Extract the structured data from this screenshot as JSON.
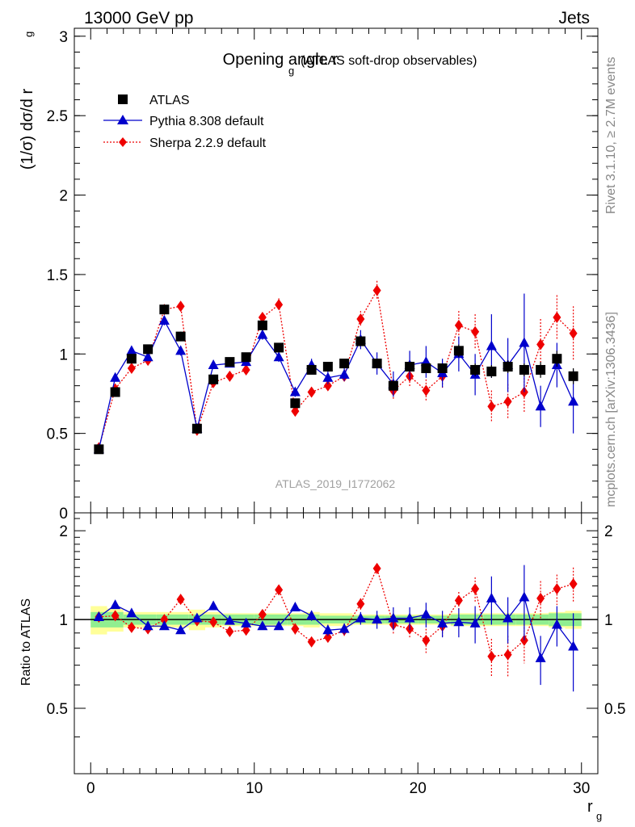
{
  "header": {
    "left": "13000 GeV pp",
    "right": "Jets"
  },
  "side_labels": {
    "rivet": "Rivet 3.1.10, ≥ 2.7M events",
    "mcplots": "mcplots.cern.ch [arXiv:1306.3436]"
  },
  "chart_data": {
    "type": "scatter",
    "title": "Opening angle r",
    "title_sub": "g",
    "title_suffix": "(ATLAS soft-drop observables)",
    "analysis_id": "ATLAS_2019_I1772062",
    "ylabel": "(1/σ) dσ/d r",
    "ylabel_sub": "g",
    "xlabel": "r",
    "xlabel_sub": "g",
    "ratio_ylabel": "Ratio to ATLAS",
    "xlim": [
      -1,
      31
    ],
    "ylim": [
      0,
      3.05
    ],
    "ratio_ylim": [
      0.3,
      2.3
    ],
    "yticks": [
      "0",
      "0.5",
      "1",
      "1.5",
      "2",
      "2.5",
      "3"
    ],
    "xticks": [
      "0",
      "10",
      "20",
      "30"
    ],
    "ratio_yticks": [
      "0.5",
      "1",
      "2"
    ],
    "legend_position": "top-left",
    "colors": {
      "atlas": "#000000",
      "pythia": "#0000cc",
      "sherpa": "#ee0000",
      "band_inner": "#90ee90",
      "band_outer": "#ffff99"
    },
    "x": [
      0.5,
      1.5,
      2.5,
      3.5,
      4.5,
      5.5,
      6.5,
      7.5,
      8.5,
      9.5,
      10.5,
      11.5,
      12.5,
      13.5,
      14.5,
      15.5,
      16.5,
      17.5,
      18.5,
      19.5,
      20.5,
      21.5,
      22.5,
      23.5,
      24.5,
      25.5,
      26.5,
      27.5,
      28.5,
      29.5
    ],
    "series": [
      {
        "name": "ATLAS",
        "marker": "square",
        "values": [
          0.4,
          0.76,
          0.97,
          1.03,
          1.28,
          1.11,
          0.53,
          0.84,
          0.95,
          0.98,
          1.18,
          1.04,
          0.69,
          0.9,
          0.92,
          0.94,
          1.08,
          0.94,
          0.8,
          0.92,
          0.91,
          0.91,
          1.02,
          0.9,
          0.89,
          0.92,
          0.9,
          0.9,
          0.97,
          0.86
        ],
        "err": [
          0.02,
          0.02,
          0.02,
          0.02,
          0.03,
          0.03,
          0.02,
          0.02,
          0.02,
          0.02,
          0.03,
          0.03,
          0.02,
          0.02,
          0.02,
          0.02,
          0.03,
          0.03,
          0.03,
          0.03,
          0.03,
          0.03,
          0.04,
          0.04,
          0.04,
          0.04,
          0.04,
          0.05,
          0.05,
          0.05
        ]
      },
      {
        "name": "Pythia 8.308 default",
        "marker": "triangle",
        "values": [
          0.4,
          0.85,
          1.02,
          0.98,
          1.21,
          1.02,
          0.53,
          0.93,
          0.94,
          0.95,
          1.12,
          0.98,
          0.76,
          0.93,
          0.85,
          0.87,
          1.09,
          0.94,
          0.81,
          0.93,
          0.95,
          0.88,
          1.0,
          0.87,
          1.05,
          0.93,
          1.07,
          0.67,
          0.93,
          0.7
        ],
        "err": [
          0.01,
          0.02,
          0.02,
          0.02,
          0.03,
          0.03,
          0.02,
          0.02,
          0.02,
          0.02,
          0.03,
          0.03,
          0.03,
          0.04,
          0.04,
          0.04,
          0.06,
          0.07,
          0.08,
          0.09,
          0.1,
          0.09,
          0.11,
          0.13,
          0.2,
          0.17,
          0.31,
          0.13,
          0.14,
          0.2
        ]
      },
      {
        "name": "Sherpa 2.2.9 default",
        "marker": "diamond",
        "values": [
          0.41,
          0.78,
          0.91,
          0.96,
          1.28,
          1.3,
          0.52,
          0.82,
          0.86,
          0.9,
          1.23,
          1.31,
          0.64,
          0.76,
          0.8,
          0.86,
          1.22,
          1.4,
          0.77,
          0.86,
          0.77,
          0.86,
          1.18,
          1.14,
          0.67,
          0.7,
          0.76,
          1.06,
          1.23,
          1.13
        ],
        "err": [
          0.01,
          0.02,
          0.02,
          0.02,
          0.03,
          0.03,
          0.02,
          0.02,
          0.02,
          0.02,
          0.03,
          0.04,
          0.03,
          0.03,
          0.03,
          0.04,
          0.05,
          0.06,
          0.06,
          0.07,
          0.07,
          0.08,
          0.09,
          0.11,
          0.1,
          0.11,
          0.13,
          0.16,
          0.14,
          0.17
        ]
      }
    ],
    "ratio": {
      "pythia": [
        1.02,
        1.12,
        1.05,
        0.95,
        0.95,
        0.92,
        1.01,
        1.11,
        0.99,
        0.97,
        0.95,
        0.95,
        1.1,
        1.03,
        0.92,
        0.93,
        1.01,
        1.0,
        1.01,
        1.01,
        1.04,
        0.97,
        0.98,
        0.97,
        1.18,
        1.01,
        1.19,
        0.74,
        0.96,
        0.81
      ],
      "pythia_err": [
        0.01,
        0.02,
        0.02,
        0.02,
        0.02,
        0.02,
        0.02,
        0.02,
        0.02,
        0.02,
        0.02,
        0.02,
        0.03,
        0.04,
        0.04,
        0.04,
        0.05,
        0.07,
        0.09,
        0.09,
        0.1,
        0.1,
        0.11,
        0.14,
        0.22,
        0.18,
        0.34,
        0.14,
        0.15,
        0.24
      ],
      "sherpa": [
        1.02,
        1.03,
        0.94,
        0.93,
        1.0,
        1.17,
        0.99,
        0.98,
        0.91,
        0.92,
        1.04,
        1.26,
        0.93,
        0.84,
        0.87,
        0.92,
        1.13,
        1.49,
        0.96,
        0.93,
        0.85,
        0.95,
        1.16,
        1.27,
        0.75,
        0.76,
        0.85,
        1.18,
        1.27,
        1.32
      ],
      "sherpa_err": [
        0.01,
        0.02,
        0.02,
        0.02,
        0.02,
        0.02,
        0.02,
        0.02,
        0.02,
        0.02,
        0.03,
        0.03,
        0.04,
        0.03,
        0.03,
        0.04,
        0.05,
        0.06,
        0.07,
        0.07,
        0.08,
        0.08,
        0.08,
        0.12,
        0.11,
        0.12,
        0.14,
        0.17,
        0.15,
        0.18
      ],
      "band_inner": [
        0.06,
        0.06,
        0.04,
        0.04,
        0.04,
        0.04,
        0.04,
        0.04,
        0.04,
        0.04,
        0.04,
        0.04,
        0.04,
        0.04,
        0.03,
        0.03,
        0.03,
        0.03,
        0.03,
        0.03,
        0.03,
        0.03,
        0.04,
        0.04,
        0.04,
        0.04,
        0.04,
        0.04,
        0.05,
        0.05
      ],
      "band_outer": [
        0.11,
        0.09,
        0.06,
        0.06,
        0.06,
        0.06,
        0.08,
        0.06,
        0.05,
        0.05,
        0.05,
        0.05,
        0.05,
        0.06,
        0.05,
        0.05,
        0.04,
        0.04,
        0.04,
        0.04,
        0.04,
        0.04,
        0.05,
        0.05,
        0.05,
        0.05,
        0.05,
        0.05,
        0.06,
        0.07
      ]
    }
  }
}
